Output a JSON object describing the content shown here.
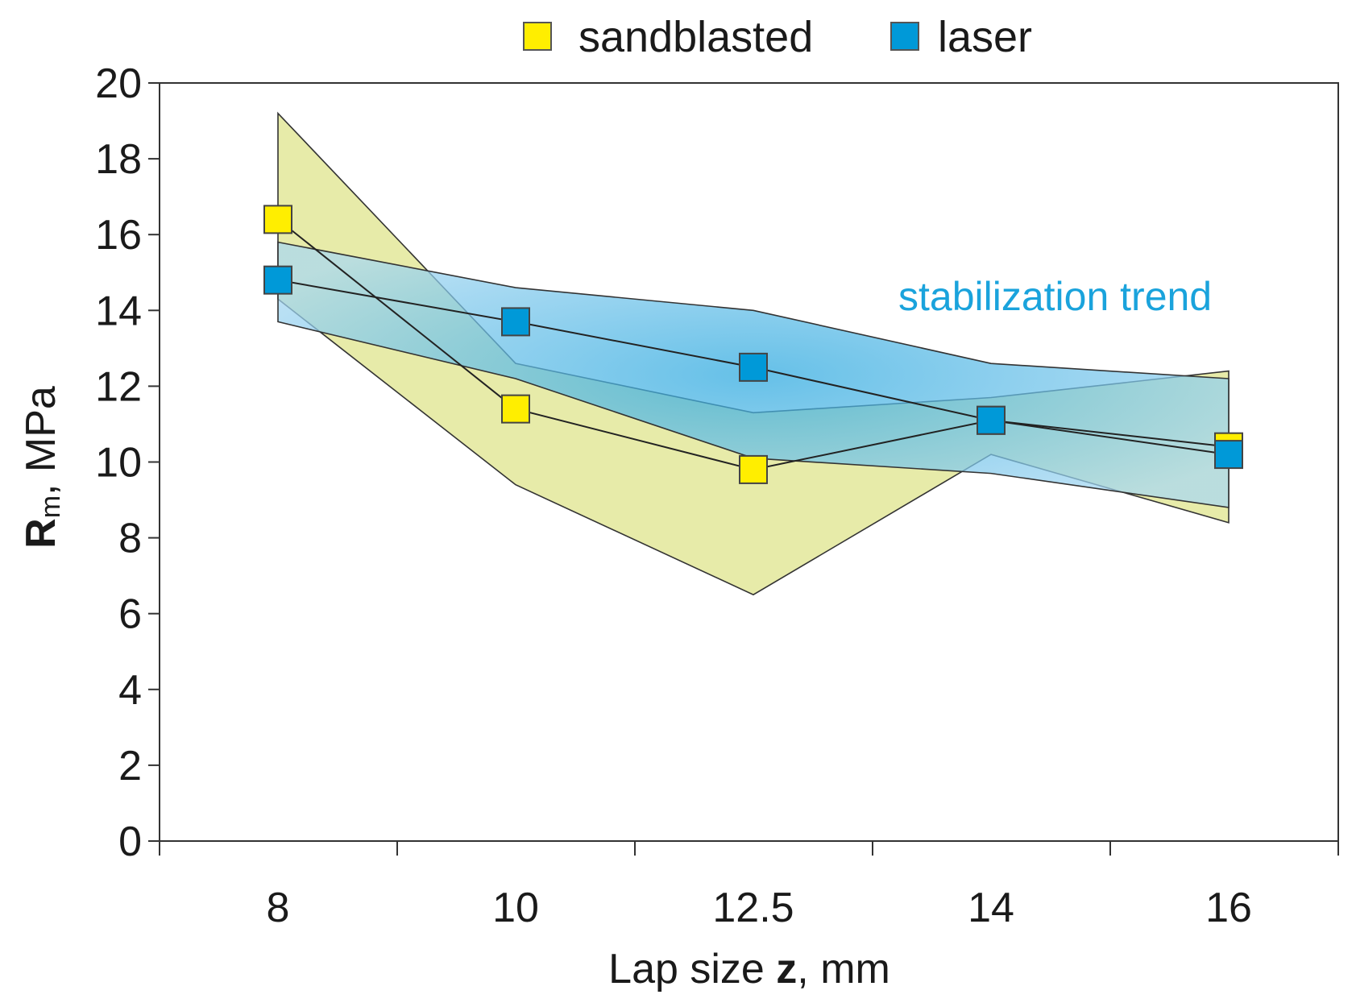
{
  "chart_data": {
    "type": "line",
    "categories": [
      "8",
      "10",
      "12.5",
      "14",
      "16"
    ],
    "ylim": [
      0,
      20
    ],
    "yticks": [
      0,
      2,
      4,
      6,
      8,
      10,
      12,
      14,
      16,
      18,
      20
    ],
    "ylabel_main": "R",
    "ylabel_sub": "m",
    "ylabel_rest": ", MPa",
    "xlabel_pre": "Lap size ",
    "xlabel_bold": "z",
    "xlabel_post": ", mm",
    "series": [
      {
        "name": "sandblasted",
        "color": "#ffee00",
        "band_color": "#e6eaa4",
        "values": [
          16.4,
          11.4,
          9.8,
          11.1,
          10.4
        ],
        "upper": [
          19.2,
          12.6,
          11.3,
          11.7,
          12.4
        ],
        "lower": [
          14.3,
          9.4,
          6.5,
          10.2,
          8.4
        ]
      },
      {
        "name": "laser",
        "color": "#0099d8",
        "band_color": "#5bb9e6",
        "values": [
          14.8,
          13.7,
          12.5,
          11.1,
          10.2
        ],
        "upper": [
          15.8,
          14.6,
          14.0,
          12.6,
          12.2
        ],
        "lower": [
          13.7,
          12.2,
          10.1,
          9.7,
          8.8
        ]
      }
    ],
    "annotation": "stabilization trend",
    "annotation_color": "#1aa3dc",
    "legend_position": "top-center"
  }
}
